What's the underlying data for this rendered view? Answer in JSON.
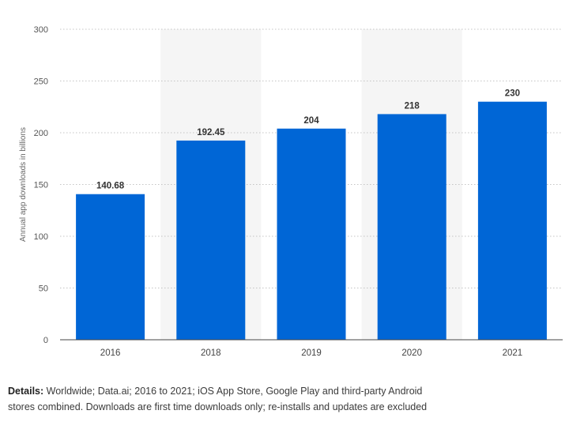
{
  "chart_data": {
    "type": "bar",
    "categories": [
      "2016",
      "2018",
      "2019",
      "2020",
      "2021"
    ],
    "values": [
      140.68,
      192.45,
      204,
      218,
      230
    ],
    "value_labels": [
      "140.68",
      "192.45",
      "204",
      "218",
      "230"
    ],
    "ylabel": "Annual app downloads in billions",
    "xlabel": "",
    "ylim": [
      0,
      300
    ],
    "yticks": [
      0,
      50,
      100,
      150,
      200,
      250,
      300
    ],
    "grid": true,
    "legend": "none",
    "bar_color": "#0066d6",
    "alt_band_color": "#f5f5f5"
  },
  "footnote": {
    "label": "Details:",
    "text": " Worldwide; Data.ai; 2016 to 2021; iOS App Store, Google Play and third-party Android stores combined. Downloads are first time downloads only; re-installs and updates are excluded"
  }
}
